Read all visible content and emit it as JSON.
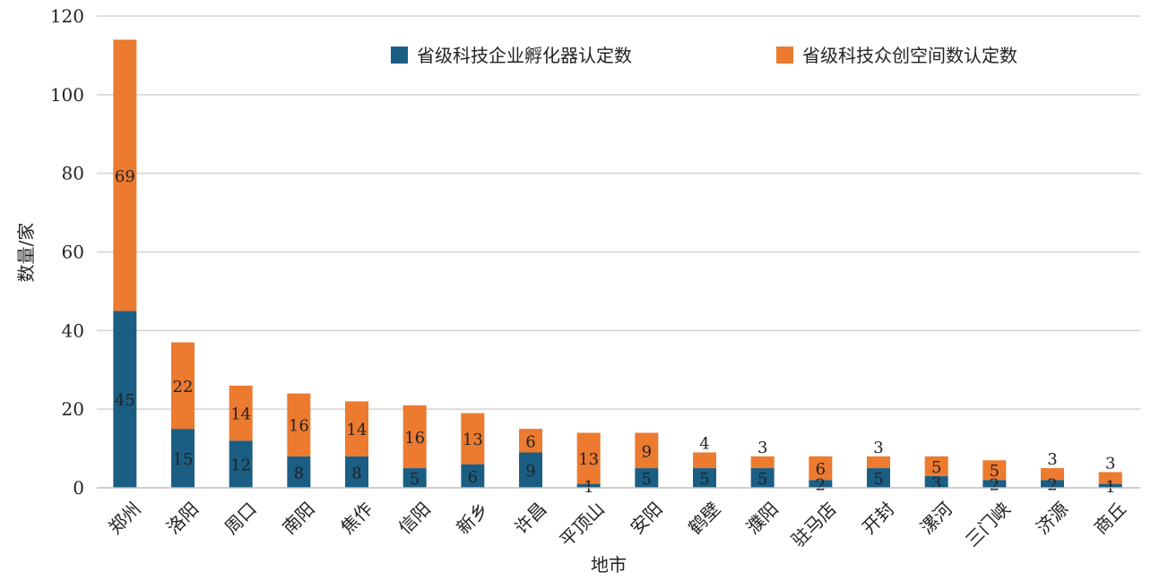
{
  "chart_data": {
    "type": "bar",
    "stacked": true,
    "categories": [
      "郑州",
      "洛阳",
      "周口",
      "南阳",
      "焦作",
      "信阳",
      "新乡",
      "许昌",
      "平顶山",
      "安阳",
      "鹤壁",
      "濮阳",
      "驻马店",
      "开封",
      "漯河",
      "三门峡",
      "济源",
      "商丘"
    ],
    "series": [
      {
        "name": "省级科技企业孵化器认定数",
        "color": "#1b5e84",
        "values": [
          45,
          15,
          12,
          8,
          8,
          5,
          6,
          9,
          1,
          5,
          5,
          5,
          2,
          5,
          3,
          2,
          2,
          1
        ]
      },
      {
        "name": "省级科技众创空间数认定数",
        "color": "#ec7a2f",
        "values": [
          69,
          22,
          14,
          16,
          14,
          16,
          13,
          6,
          13,
          9,
          4,
          3,
          6,
          3,
          5,
          5,
          3,
          3
        ]
      }
    ],
    "xlabel": "地市",
    "ylabel": "数量/家",
    "ylim": [
      0,
      120
    ],
    "yticks": [
      0,
      20,
      40,
      60,
      80,
      100,
      120
    ],
    "grid": true,
    "legend_position": "top"
  }
}
